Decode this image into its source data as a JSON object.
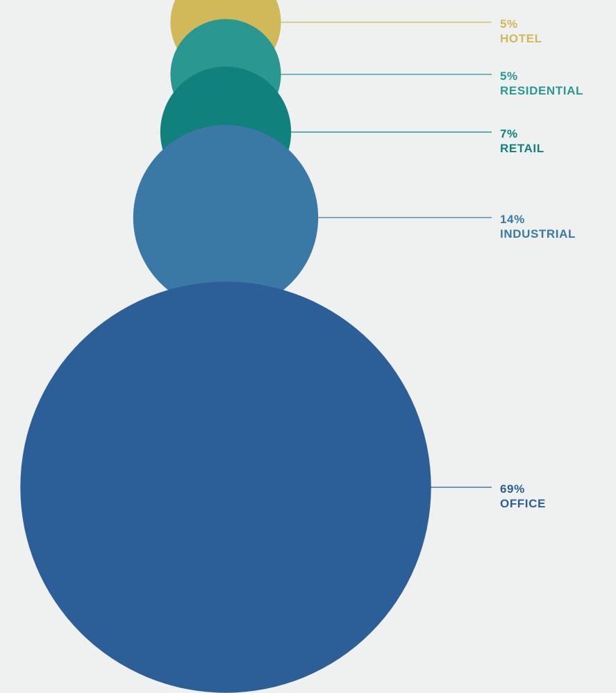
{
  "chart_data": {
    "type": "bubble",
    "title": "",
    "xlabel": "",
    "ylabel": "",
    "legend": "none",
    "grid": false,
    "unit": "%",
    "categories": [
      "HOTEL",
      "RESIDENTIAL",
      "RETAIL",
      "INDUSTRIAL",
      "OFFICE"
    ],
    "values": [
      5,
      5,
      7,
      14,
      69
    ],
    "labels": [
      "5%",
      "5%",
      "7%",
      "14%",
      "69%"
    ],
    "colors": [
      "#d1b95a",
      "#2a9791",
      "#11817e",
      "#3a78a5",
      "#2c5e98"
    ]
  },
  "background": "#eff0f0"
}
